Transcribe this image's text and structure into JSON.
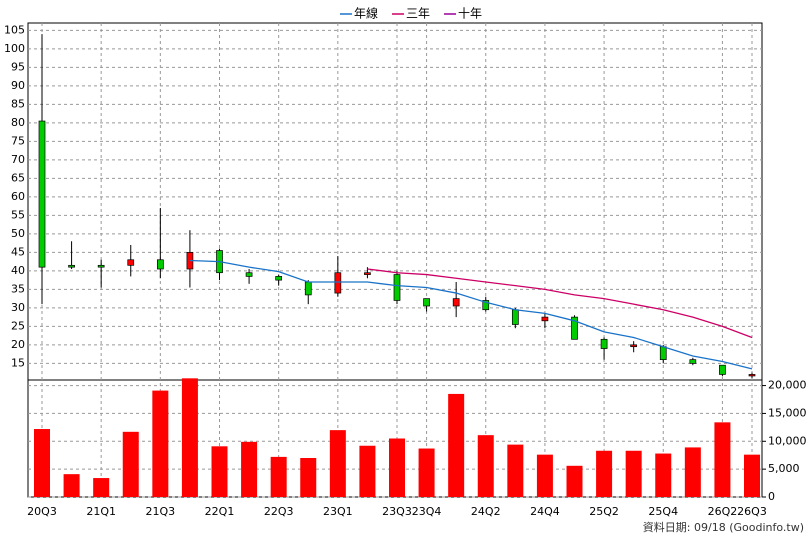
{
  "chart_data": [
    {
      "type": "candlestick",
      "up_color": "#ff0000",
      "down_color": "#00cc00",
      "open": [
        80.5,
        41.5,
        41.5,
        41.5,
        43,
        40.5,
        45.5,
        39.5,
        38.5,
        37,
        34,
        39,
        39,
        32.5,
        30.5,
        32,
        29.5,
        26.5,
        27.5,
        21.5,
        19.5,
        19.5,
        16,
        14.5,
        12
      ],
      "high": [
        104,
        48,
        43,
        47,
        57,
        51,
        46,
        40.5,
        39,
        37.5,
        44,
        41,
        40,
        32.5,
        37,
        33,
        30,
        28.5,
        28,
        22,
        21,
        20,
        16.5,
        14.5,
        12.5
      ],
      "low": [
        31,
        40.5,
        35.5,
        38.5,
        38,
        35.5,
        37.5,
        36.5,
        36,
        31,
        33,
        38,
        31,
        29,
        27.5,
        29,
        24.5,
        24.5,
        21.5,
        16,
        18,
        15,
        14.5,
        11.5,
        11
      ],
      "close": [
        41,
        41,
        41,
        43,
        40.5,
        45,
        39.5,
        38.5,
        37.5,
        33.5,
        39.5,
        39.5,
        32,
        30.5,
        32.5,
        29.5,
        25.5,
        27.5,
        21.5,
        19,
        20,
        16,
        15,
        12,
        12
      ],
      "series": [
        {
          "name": "年線",
          "color": "#1a73c8",
          "values": [
            null,
            null,
            null,
            null,
            null,
            42.8,
            42.5,
            41,
            39.8,
            37,
            37,
            37,
            36,
            35.5,
            34,
            31.5,
            29.5,
            28.5,
            26.5,
            23.5,
            22,
            19.5,
            17,
            15.5,
            13.5
          ]
        },
        {
          "name": "三年",
          "color": "#cc0066",
          "values": [
            null,
            null,
            null,
            null,
            null,
            null,
            null,
            null,
            null,
            null,
            null,
            40.5,
            39.5,
            39,
            38,
            37,
            36,
            35,
            33.5,
            32.5,
            31,
            29.5,
            27.5,
            25,
            22
          ]
        },
        {
          "name": "十年",
          "color": "#990099",
          "values": [
            null,
            null,
            null,
            null,
            null,
            null,
            null,
            null,
            null,
            null,
            null,
            null,
            null,
            null,
            null,
            null,
            null,
            null,
            null,
            null,
            null,
            null,
            null,
            null,
            null
          ]
        }
      ],
      "ylim": [
        10.5,
        107
      ],
      "yticks": [
        15,
        20,
        25,
        30,
        35,
        40,
        45,
        50,
        55,
        60,
        65,
        70,
        75,
        80,
        85,
        90,
        95,
        100,
        105
      ],
      "grid": true
    },
    {
      "type": "bar",
      "color": "#ff0000",
      "categories": [
        "20Q3",
        null,
        "21Q1",
        null,
        "21Q3",
        null,
        "22Q1",
        null,
        "22Q3",
        null,
        "23Q1",
        null,
        "23Q3",
        "23Q4",
        null,
        "24Q2",
        null,
        "24Q4",
        null,
        "25Q2",
        null,
        "25Q4",
        null,
        "26Q2",
        "26Q3"
      ],
      "values": [
        12200,
        4100,
        3400,
        11700,
        19100,
        21300,
        9100,
        9900,
        7200,
        7000,
        12000,
        9200,
        10500,
        8700,
        18500,
        11100,
        9400,
        7600,
        5600,
        8300,
        8300,
        7800,
        8900,
        13400,
        7600
      ],
      "ylim": [
        0,
        21000
      ],
      "yticks": [
        0,
        {
          "value": 5000,
          "label": "5,000"
        },
        {
          "value": 10000,
          "label": "10,000"
        },
        {
          "value": 15000,
          "label": "15,000"
        },
        {
          "value": 20000,
          "label": "20,000"
        }
      ],
      "grid": true,
      "source_note": "資料日期: 09/18 (Goodinfo.tw)"
    }
  ]
}
